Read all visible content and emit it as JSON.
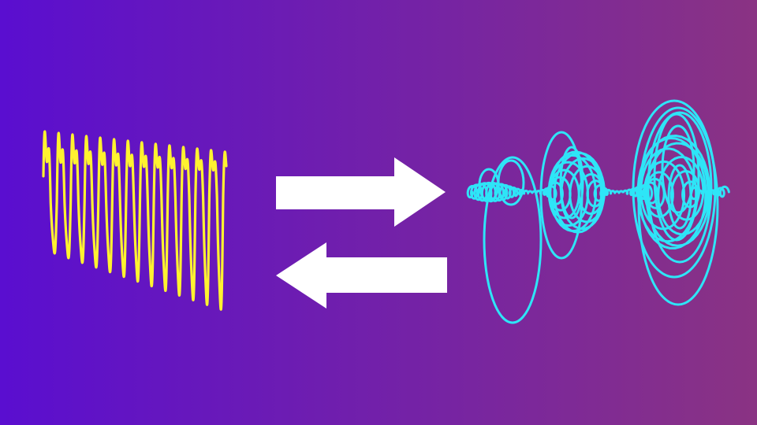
{
  "colors": {
    "background_start": "#5a0ed0",
    "background_end": "#8a3383",
    "waveform_stroke": "#fff230",
    "spiral_stroke": "#2ee5f7",
    "arrow_fill": "#ffffff"
  },
  "diagram": {
    "left_glyph": "waveform",
    "right_glyph": "spiral-coil",
    "arrows": [
      "arrow-right",
      "arrow-left"
    ]
  }
}
